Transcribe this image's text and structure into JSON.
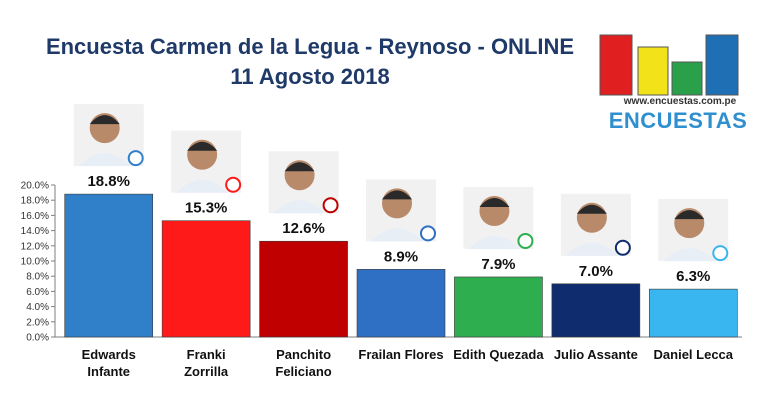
{
  "title": {
    "line1": "Encuesta Carmen de la Legua - Reynoso - ONLINE",
    "line2": "11 Agosto 2018"
  },
  "logo": {
    "url": "www.encuestas.com.pe",
    "name": "ENCUESTAS",
    "colors": [
      "#e02020",
      "#f2e21a",
      "#2aa04a",
      "#1f6fb5"
    ]
  },
  "chart_data": {
    "type": "bar",
    "categories": [
      "Edwards Infante",
      "Franki Zorrilla",
      "Panchito Feliciano",
      "Frailan Flores",
      "Edith Quezada",
      "Julio Assante",
      "Daniel Lecca"
    ],
    "values": [
      18.8,
      15.3,
      12.6,
      8.9,
      7.9,
      7.0,
      6.3
    ],
    "value_labels": [
      "18.8%",
      "15.3%",
      "12.6%",
      "8.9%",
      "7.9%",
      "7.0%",
      "6.3%"
    ],
    "bar_colors": [
      "#2f80c9",
      "#ff1a1a",
      "#c00000",
      "#2f6fc4",
      "#2fae4f",
      "#0f2d6e",
      "#39b6f0"
    ],
    "ylim": [
      0,
      20
    ],
    "y_ticks": [
      "0.0%",
      "2.0%",
      "4.0%",
      "6.0%",
      "8.0%",
      "10.0%",
      "12.0%",
      "14.0%",
      "16.0%",
      "18.0%",
      "20.0%"
    ],
    "grid": false,
    "candidate_photo_badges": [
      "fuerza-callao-icon",
      "vamos-peru-icon",
      "star-party-icon",
      "pn-party-icon",
      "ppc-party-icon",
      "podemos-icon",
      "accion-popular-icon"
    ]
  }
}
